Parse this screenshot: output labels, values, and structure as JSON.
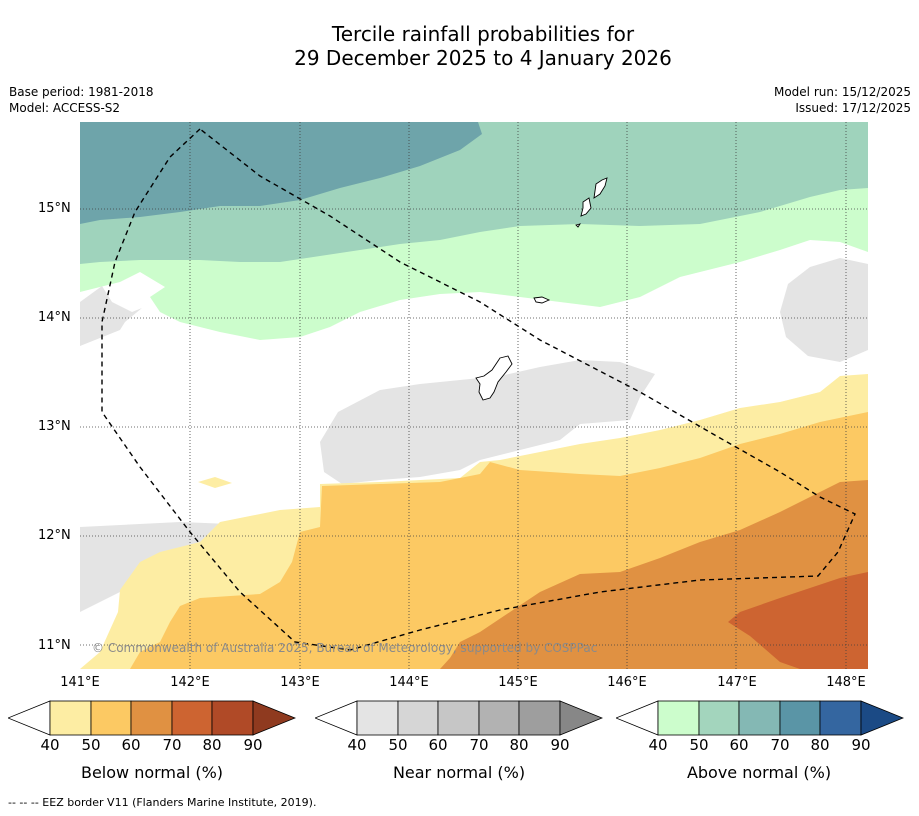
{
  "title": {
    "line1": "Tercile rainfall probabilities for",
    "line2": "29 December 2025 to 4 January 2026"
  },
  "meta": {
    "base_period": "Base period: 1981-2018",
    "model": "Model: ACCESS-S2",
    "model_run": "Model run: 15/12/2025",
    "issued": "Issued: 17/12/2025"
  },
  "axes": {
    "lat_labels": [
      "15°N",
      "14°N",
      "13°N",
      "12°N",
      "11°N"
    ],
    "lon_labels": [
      "141°E",
      "142°E",
      "143°E",
      "144°E",
      "145°E",
      "146°E",
      "147°E",
      "148°E"
    ]
  },
  "copyright": "© Commonwealth of Australia 2025, Bureau of Meteorology, supported by COSPPac",
  "legend": {
    "ticks": [
      "40",
      "50",
      "60",
      "70",
      "80",
      "90"
    ],
    "below": {
      "label": "Below normal (%)",
      "colors": [
        "#ffffff",
        "#fdeda3",
        "#fcc963",
        "#e09142",
        "#cd6431",
        "#b04a27",
        "#8f3a1f"
      ]
    },
    "near": {
      "label": "Near normal (%)",
      "colors": [
        "#ffffff",
        "#e4e4e4",
        "#d6d6d6",
        "#c6c6c6",
        "#b2b2b2",
        "#9e9e9e",
        "#878787"
      ]
    },
    "above": {
      "label": "Above normal (%)",
      "colors": [
        "#ffffff",
        "#ccfdcc",
        "#a3d5bd",
        "#84b8b4",
        "#5a95a6",
        "#3466a0",
        "#1b4a85"
      ]
    }
  },
  "footnote": "--  --  -- EEZ border V11 (Flanders Marine Institute, 2019).",
  "colors": {
    "above_50": "#ccfdcc",
    "above_60": "#9fd3bc",
    "above_70": "#6ea4aa",
    "near_40": "#e4e4e4",
    "below_40": "#fdeda3",
    "below_50": "#fcc963",
    "below_60": "#e09142",
    "below_70": "#cd6431"
  }
}
